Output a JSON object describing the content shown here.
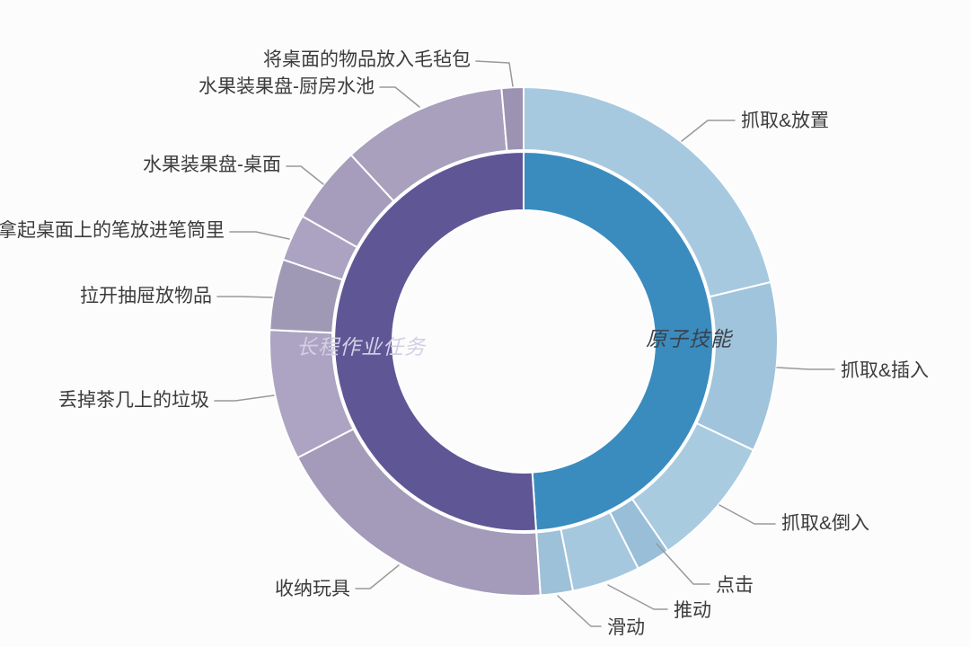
{
  "colors": {
    "background": "#fcfcfc",
    "leader_line": "#999999",
    "outer_label_text": "#3c3c3c",
    "inner_blue": "#3a8cbf",
    "inner_purple": "#5f5795",
    "inner_blue_label": "#3a434c",
    "inner_purple_label": "#d3cfe4"
  },
  "chart_data": {
    "type": "sunburst",
    "title": "",
    "legend_position": "none",
    "unit": "share of full circle (degrees / percent), estimated from arc angles",
    "inner_ring": {
      "segments": [
        {
          "id": "yuanzi",
          "label": "原子技能",
          "color": "#3a8cbf",
          "label_color": "#3a434c",
          "start_deg": 0,
          "end_deg": 176.2,
          "value_pct": 48.9
        },
        {
          "id": "changcheng",
          "label": "长程作业任务",
          "color": "#5f5795",
          "label_color": "#d3cfe4",
          "start_deg": 176.2,
          "end_deg": 360,
          "value_pct": 51.1
        }
      ]
    },
    "outer_ring": {
      "segments": [
        {
          "id": "fangzhi",
          "label": "抓取&放置",
          "parent": "原子技能",
          "color": "#a7c9e0",
          "start_deg": 0,
          "end_deg": 76.5,
          "value_pct": 21.3
        },
        {
          "id": "charu",
          "label": "抓取&插入",
          "parent": "原子技能",
          "color": "#a0c4db",
          "start_deg": 76.5,
          "end_deg": 115.3,
          "value_pct": 10.8
        },
        {
          "id": "daoru",
          "label": "抓取&倒入",
          "parent": "原子技能",
          "color": "#a9cbe0",
          "start_deg": 115.3,
          "end_deg": 145.4,
          "value_pct": 8.4
        },
        {
          "id": "dianji",
          "label": "点击",
          "parent": "原子技能",
          "color": "#98bed8",
          "start_deg": 145.4,
          "end_deg": 153.2,
          "value_pct": 2.2
        },
        {
          "id": "tuidong",
          "label": "推动",
          "parent": "原子技能",
          "color": "#a6c8de",
          "start_deg": 153.2,
          "end_deg": 168.8,
          "value_pct": 4.3
        },
        {
          "id": "huadong",
          "label": "滑动",
          "parent": "原子技能",
          "color": "#9cc1d8",
          "start_deg": 168.8,
          "end_deg": 176.2,
          "value_pct": 2.1
        },
        {
          "id": "shouna",
          "label": "收纳玩具",
          "parent": "长程作业任务",
          "color": "#a39bb9",
          "start_deg": 176.2,
          "end_deg": 242.8,
          "value_pct": 18.5
        },
        {
          "id": "diudiao",
          "label": "丢掉茶几上的垃圾",
          "parent": "长程作业任务",
          "color": "#aca4c2",
          "start_deg": 242.8,
          "end_deg": 272.6,
          "value_pct": 8.3
        },
        {
          "id": "lakai",
          "label": "拉开抽屉放物品",
          "parent": "长程作业任务",
          "color": "#a099b6",
          "start_deg": 272.6,
          "end_deg": 288.8,
          "value_pct": 4.5
        },
        {
          "id": "naqi",
          "label": "拿起桌面上的笔放进笔筒里",
          "parent": "长程作业任务",
          "color": "#aba3c1",
          "start_deg": 288.8,
          "end_deg": 299.5,
          "value_pct": 3.0
        },
        {
          "id": "zhuomian",
          "label": "水果装果盘-桌面",
          "parent": "长程作业任务",
          "color": "#a59dbb",
          "start_deg": 299.5,
          "end_deg": 317.2,
          "value_pct": 4.9
        },
        {
          "id": "chufang",
          "label": "水果装果盘-厨房水池",
          "parent": "长程作业任务",
          "color": "#a8a0bd",
          "start_deg": 317.2,
          "end_deg": 355.0,
          "value_pct": 10.5
        },
        {
          "id": "maozhan",
          "label": "将桌面的物品放入毛毡包",
          "parent": "长程作业任务",
          "color": "#9b93b1",
          "start_deg": 355.0,
          "end_deg": 360.0,
          "value_pct": 1.4
        }
      ]
    }
  }
}
